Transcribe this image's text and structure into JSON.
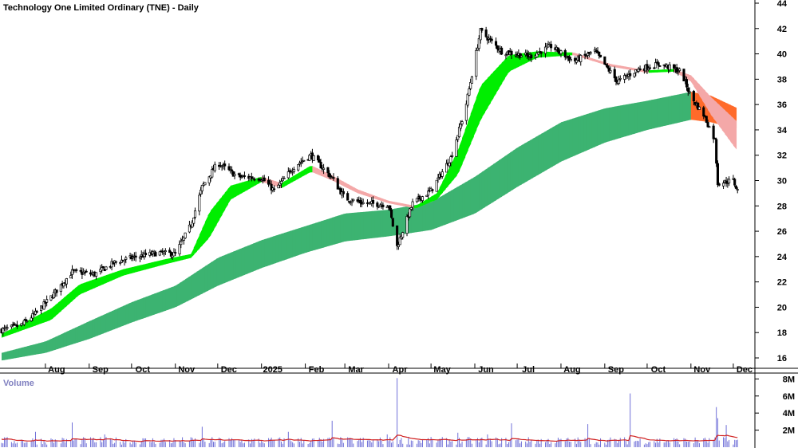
{
  "chart_data": {
    "type": "candlestick",
    "title": "Technology One Limited Ordinary (TNE) - Daily",
    "price_axis": {
      "ylim": [
        15,
        44.5
      ],
      "ticks": [
        16,
        18,
        20,
        22,
        24,
        26,
        28,
        30,
        32,
        34,
        36,
        38,
        40,
        42,
        44
      ]
    },
    "volume_axis": {
      "label": "Volume",
      "ylim": [
        0,
        8500000
      ],
      "ticks": [
        {
          "value": 2000000,
          "label": "2M"
        },
        {
          "value": 4000000,
          "label": "4M"
        },
        {
          "value": 6000000,
          "label": "6M"
        },
        {
          "value": 8000000,
          "label": "8M"
        }
      ]
    },
    "x_axis": {
      "start": "2024-07-01",
      "end": "2025-12-05",
      "month_ticks": [
        {
          "label": "Aug",
          "date": "2024-08-01"
        },
        {
          "label": "Sep",
          "date": "2024-09-01"
        },
        {
          "label": "Oct",
          "date": "2024-10-01"
        },
        {
          "label": "Nov",
          "date": "2024-11-01"
        },
        {
          "label": "Dec",
          "date": "2024-12-01"
        },
        {
          "label": "2025",
          "date": "2025-01-01"
        },
        {
          "label": "Feb",
          "date": "2025-02-01"
        },
        {
          "label": "Mar",
          "date": "2025-03-01"
        },
        {
          "label": "Apr",
          "date": "2025-04-01"
        },
        {
          "label": "May",
          "date": "2025-05-01"
        },
        {
          "label": "Jun",
          "date": "2025-06-01"
        },
        {
          "label": "Jul",
          "date": "2025-07-01"
        },
        {
          "label": "Aug",
          "date": "2025-08-01"
        },
        {
          "label": "Sep",
          "date": "2025-09-01"
        },
        {
          "label": "Oct",
          "date": "2025-10-01"
        },
        {
          "label": "Nov",
          "date": "2025-11-01"
        },
        {
          "label": "Dec",
          "date": "2025-12-01"
        }
      ]
    },
    "price_path": [
      [
        "2024-07-01",
        18.2
      ],
      [
        "2024-07-15",
        18.6
      ],
      [
        "2024-07-25",
        19.5
      ],
      [
        "2024-08-05",
        20.8
      ],
      [
        "2024-08-20",
        22.8
      ],
      [
        "2024-09-05",
        22.6
      ],
      [
        "2024-09-20",
        23.6
      ],
      [
        "2024-10-05",
        24.0
      ],
      [
        "2024-10-20",
        24.3
      ],
      [
        "2024-11-01",
        24.2
      ],
      [
        "2024-11-12",
        26.5
      ],
      [
        "2024-11-20",
        29.5
      ],
      [
        "2024-12-01",
        31.4
      ],
      [
        "2024-12-15",
        30.3
      ],
      [
        "2025-01-01",
        30.2
      ],
      [
        "2025-01-10",
        29.2
      ],
      [
        "2025-01-25",
        31.2
      ],
      [
        "2025-02-05",
        32.0
      ],
      [
        "2025-02-20",
        30.2
      ],
      [
        "2025-03-01",
        28.6
      ],
      [
        "2025-03-15",
        28.2
      ],
      [
        "2025-04-01",
        28.1
      ],
      [
        "2025-04-07",
        24.8
      ],
      [
        "2025-04-18",
        28.2
      ],
      [
        "2025-05-01",
        29.2
      ],
      [
        "2025-05-15",
        31.8
      ],
      [
        "2025-05-25",
        35.5
      ],
      [
        "2025-06-05",
        41.8
      ],
      [
        "2025-06-20",
        40.2
      ],
      [
        "2025-07-10",
        39.8
      ],
      [
        "2025-07-25",
        40.6
      ],
      [
        "2025-08-10",
        39.4
      ],
      [
        "2025-08-25",
        40.2
      ],
      [
        "2025-09-10",
        37.8
      ],
      [
        "2025-09-25",
        38.8
      ],
      [
        "2025-10-10",
        39.2
      ],
      [
        "2025-10-25",
        38.6
      ],
      [
        "2025-11-01",
        36.6
      ],
      [
        "2025-11-10",
        35.2
      ],
      [
        "2025-11-18",
        33.2
      ],
      [
        "2025-11-20",
        29.8
      ],
      [
        "2025-12-01",
        30.0
      ],
      [
        "2025-12-04",
        29.2
      ]
    ],
    "series": [
      {
        "role": "short-term band",
        "upper": [
          [
            "2024-07-01",
            17.9
          ],
          [
            "2024-08-05",
            19.9
          ],
          [
            "2024-08-25",
            21.8
          ],
          [
            "2024-09-25",
            23.0
          ],
          [
            "2024-10-25",
            23.8
          ],
          [
            "2024-11-12",
            24.2
          ],
          [
            "2024-11-25",
            27.5
          ],
          [
            "2024-12-10",
            29.6
          ],
          [
            "2025-01-01",
            30.3
          ],
          [
            "2025-01-15",
            29.8
          ],
          [
            "2025-02-05",
            31.2
          ],
          [
            "2025-02-20",
            30.4
          ],
          [
            "2025-03-10",
            29.3
          ],
          [
            "2025-04-01",
            28.4
          ],
          [
            "2025-04-20",
            28.0
          ],
          [
            "2025-05-05",
            29.0
          ],
          [
            "2025-05-20",
            32.4
          ],
          [
            "2025-06-05",
            37.5
          ],
          [
            "2025-06-25",
            39.9
          ],
          [
            "2025-07-15",
            40.2
          ],
          [
            "2025-08-10",
            40.1
          ],
          [
            "2025-09-05",
            39.2
          ],
          [
            "2025-10-01",
            38.7
          ],
          [
            "2025-10-20",
            38.8
          ],
          [
            "2025-11-01",
            38.3
          ],
          [
            "2025-11-15",
            36.6
          ],
          [
            "2025-12-04",
            34.6
          ]
        ],
        "lower": [
          [
            "2024-07-01",
            17.6
          ],
          [
            "2024-08-05",
            19.0
          ],
          [
            "2024-08-25",
            21.0
          ],
          [
            "2024-09-25",
            22.5
          ],
          [
            "2024-10-25",
            23.4
          ],
          [
            "2024-11-12",
            23.9
          ],
          [
            "2024-11-25",
            25.5
          ],
          [
            "2024-12-10",
            28.5
          ],
          [
            "2025-01-01",
            29.9
          ],
          [
            "2025-01-15",
            29.4
          ],
          [
            "2025-02-05",
            30.7
          ],
          [
            "2025-02-20",
            30.0
          ],
          [
            "2025-03-10",
            29.0
          ],
          [
            "2025-04-01",
            28.2
          ],
          [
            "2025-04-20",
            27.8
          ],
          [
            "2025-05-05",
            28.5
          ],
          [
            "2025-05-20",
            30.5
          ],
          [
            "2025-06-05",
            34.8
          ],
          [
            "2025-06-25",
            38.6
          ],
          [
            "2025-07-15",
            39.7
          ],
          [
            "2025-08-10",
            39.9
          ],
          [
            "2025-09-05",
            39.0
          ],
          [
            "2025-10-01",
            38.5
          ],
          [
            "2025-10-20",
            38.6
          ],
          [
            "2025-11-01",
            37.8
          ],
          [
            "2025-11-15",
            35.2
          ],
          [
            "2025-12-04",
            32.3
          ]
        ]
      },
      {
        "role": "long-term band",
        "upper": [
          [
            "2024-07-01",
            16.4
          ],
          [
            "2024-08-01",
            17.3
          ],
          [
            "2024-09-01",
            18.9
          ],
          [
            "2024-10-01",
            20.4
          ],
          [
            "2024-11-01",
            21.7
          ],
          [
            "2024-12-01",
            23.9
          ],
          [
            "2025-01-01",
            25.3
          ],
          [
            "2025-02-01",
            26.4
          ],
          [
            "2025-03-01",
            27.4
          ],
          [
            "2025-04-01",
            27.7
          ],
          [
            "2025-05-01",
            28.3
          ],
          [
            "2025-06-01",
            30.3
          ],
          [
            "2025-07-01",
            32.6
          ],
          [
            "2025-08-01",
            34.6
          ],
          [
            "2025-09-01",
            35.7
          ],
          [
            "2025-10-01",
            36.3
          ],
          [
            "2025-11-01",
            37.0
          ],
          [
            "2025-11-15",
            36.7
          ],
          [
            "2025-12-04",
            35.7
          ]
        ],
        "lower": [
          [
            "2024-07-01",
            15.8
          ],
          [
            "2024-08-01",
            16.4
          ],
          [
            "2024-09-01",
            17.5
          ],
          [
            "2024-10-01",
            18.8
          ],
          [
            "2024-11-01",
            20.0
          ],
          [
            "2024-12-01",
            21.7
          ],
          [
            "2025-01-01",
            23.1
          ],
          [
            "2025-02-01",
            24.3
          ],
          [
            "2025-03-01",
            25.2
          ],
          [
            "2025-04-01",
            25.6
          ],
          [
            "2025-05-01",
            26.1
          ],
          [
            "2025-06-01",
            27.4
          ],
          [
            "2025-07-01",
            29.5
          ],
          [
            "2025-08-01",
            31.5
          ],
          [
            "2025-09-01",
            33.0
          ],
          [
            "2025-10-01",
            34.0
          ],
          [
            "2025-11-01",
            34.8
          ],
          [
            "2025-11-15",
            34.6
          ],
          [
            "2025-12-04",
            34.1
          ]
        ]
      }
    ],
    "volume_spikes": [
      [
        "2024-07-25",
        1800000
      ],
      [
        "2024-08-20",
        2900000
      ],
      [
        "2024-09-12",
        1500000
      ],
      [
        "2024-11-20",
        2400000
      ],
      [
        "2025-01-20",
        1800000
      ],
      [
        "2025-02-20",
        3100000
      ],
      [
        "2025-03-31",
        1500000
      ],
      [
        "2025-04-07",
        8100000
      ],
      [
        "2025-05-20",
        1700000
      ],
      [
        "2025-06-10",
        1500000
      ],
      [
        "2025-06-27",
        2800000
      ],
      [
        "2025-08-20",
        2700000
      ],
      [
        "2025-09-19",
        6300000
      ],
      [
        "2025-11-19",
        4700000
      ],
      [
        "2025-11-20",
        3400000
      ],
      [
        "2025-11-26",
        2600000
      ]
    ],
    "colors": {
      "short_band_rising": "#00ee00",
      "short_band_falling": "#f4a8a8",
      "long_band_rising": "#3cb371",
      "long_band_falling": "#ff6a2a",
      "candle": "#000000",
      "volume_bar": "#7070d8",
      "volume_avg": "#d02020"
    }
  }
}
